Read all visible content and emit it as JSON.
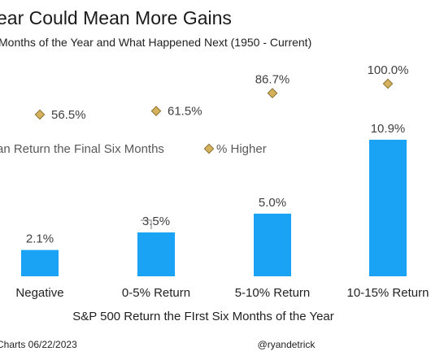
{
  "header": {
    "title": "ear Could Mean More Gains",
    "subtitle": "Months of the Year and What Happened Next (1950 - Current)"
  },
  "colors": {
    "bar": "#1aa3f5",
    "marker": "#d4b15a",
    "marker_edge": "#8a7233"
  },
  "chart_data": {
    "type": "bar",
    "categories": [
      "Negative",
      "0-5% Return",
      "5-10% Return",
      "10-15% Return"
    ],
    "series": [
      {
        "name": "an Return the Final Six Months",
        "values": [
          2.1,
          3.5,
          5.0,
          10.9
        ],
        "labels": [
          "2.1%",
          "3.5%",
          "5.0%",
          "10.9%"
        ]
      },
      {
        "name": "% Higher",
        "values": [
          56.5,
          61.5,
          86.7,
          100.0
        ],
        "labels": [
          "56.5%",
          "61.5%",
          "86.7%",
          "100.0%"
        ]
      }
    ],
    "xlabel": "S&P 500 Return the FIrst Six Months of the Year",
    "legend_position": "middle"
  },
  "footer": {
    "source": "Charts 06/22/2023",
    "handle": "@ryandetrick"
  }
}
